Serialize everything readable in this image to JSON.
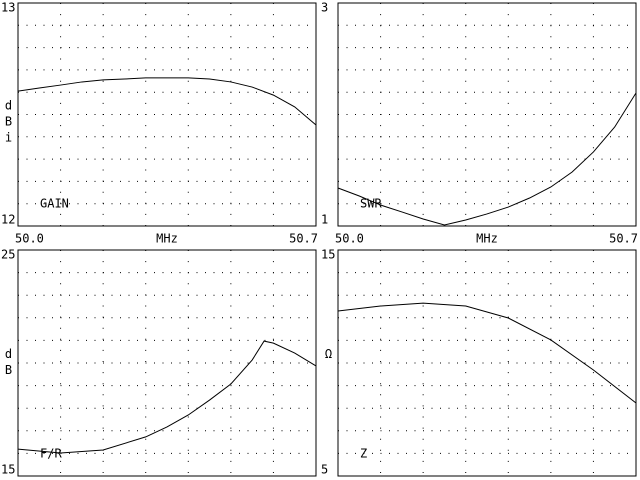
{
  "chart_data": [
    {
      "type": "line",
      "label": "GAIN",
      "ylabel": "dBi",
      "xlabel": "MHz",
      "x": [
        50.0,
        50.05,
        50.1,
        50.15,
        50.2,
        50.25,
        50.3,
        50.35,
        50.4,
        50.45,
        50.5,
        50.55,
        50.6,
        50.65,
        50.7
      ],
      "values": [
        12.605,
        12.619,
        12.632,
        12.646,
        12.655,
        12.659,
        12.664,
        12.664,
        12.664,
        12.659,
        12.646,
        12.623,
        12.587,
        12.534,
        12.453
      ],
      "color": "#000000",
      "xlim": [
        50.0,
        50.7
      ],
      "ylim": [
        12,
        13
      ],
      "xticks": [
        {
          "value": 50.0,
          "label": "50.0"
        },
        {
          "value": 50.7,
          "label": "50.7"
        }
      ],
      "yticks": [
        12,
        13
      ],
      "grid": {
        "x": 7,
        "y": 10
      }
    },
    {
      "type": "line",
      "label": "SWR",
      "xlabel": "MHz",
      "x": [
        50.0,
        50.05,
        50.1,
        50.15,
        50.2,
        50.25,
        50.3,
        50.35,
        50.4,
        50.45,
        50.5,
        50.55,
        50.6,
        50.65,
        50.7
      ],
      "values": [
        1.341,
        1.269,
        1.188,
        1.126,
        1.063,
        1.009,
        1.054,
        1.108,
        1.17,
        1.251,
        1.35,
        1.484,
        1.664,
        1.888,
        2.193
      ],
      "color": "#000000",
      "xlim": [
        50.0,
        50.7
      ],
      "ylim": [
        1,
        3
      ],
      "xticks": [
        {
          "value": 50.0,
          "label": "50.0"
        },
        {
          "value": 50.7,
          "label": "50.7"
        }
      ],
      "yticks": [
        1,
        3
      ],
      "grid": {
        "x": 7,
        "y": 10
      }
    },
    {
      "type": "line",
      "label": "F/R",
      "ylabel": "dB",
      "x": [
        50.0,
        50.1,
        50.2,
        50.3,
        50.35,
        50.4,
        50.45,
        50.5,
        50.55,
        50.578,
        50.6,
        50.65,
        50.7
      ],
      "values": [
        16.19,
        16.02,
        16.15,
        16.73,
        17.17,
        17.7,
        18.36,
        19.07,
        20.13,
        20.97,
        20.88,
        20.44,
        19.87
      ],
      "color": "#000000",
      "xlim": [
        50.0,
        50.7
      ],
      "ylim": [
        15,
        25
      ],
      "yticks": [
        15,
        25
      ],
      "grid": {
        "x": 7,
        "y": 10
      }
    },
    {
      "type": "line",
      "label": "Z",
      "ylabel": "Ω",
      "x": [
        50.0,
        50.1,
        50.2,
        50.3,
        50.4,
        50.5,
        50.6,
        50.7
      ],
      "values": [
        12.3,
        12.52,
        12.65,
        12.52,
        11.99,
        11.02,
        9.69,
        8.23
      ],
      "color": "#000000",
      "xlim": [
        50.0,
        50.7
      ],
      "ylim": [
        5,
        15
      ],
      "yticks": [
        5,
        15
      ],
      "grid": {
        "x": 7,
        "y": 10
      }
    }
  ]
}
